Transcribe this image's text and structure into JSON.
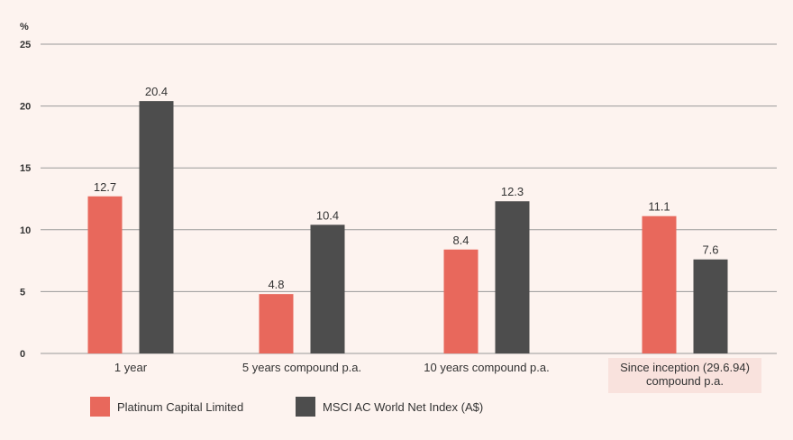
{
  "chart_data": {
    "type": "bar",
    "y_unit_label": "%",
    "categories": [
      [
        "1 year"
      ],
      [
        "5 years compound p.a."
      ],
      [
        "10 years compound p.a."
      ],
      [
        "Since inception (29.6.94)",
        "compound p.a."
      ]
    ],
    "series": [
      {
        "name": "Platinum Capital Limited",
        "color": "#e8685c",
        "values": [
          12.7,
          4.8,
          8.4,
          11.1
        ]
      },
      {
        "name": "MSCI AC World Net Index (A$)",
        "color": "#4d4d4d",
        "values": [
          20.4,
          10.4,
          12.3,
          7.6
        ]
      }
    ],
    "yticks": [
      0,
      5,
      10,
      15,
      20,
      25
    ],
    "ylim": [
      0,
      25
    ],
    "grid": true,
    "legend_position": "bottom-left"
  },
  "colors": {
    "background": "#fdf3ef",
    "gridline": "#999999",
    "text": "#333333",
    "highlight_label_bg": "#f9e2dd"
  }
}
